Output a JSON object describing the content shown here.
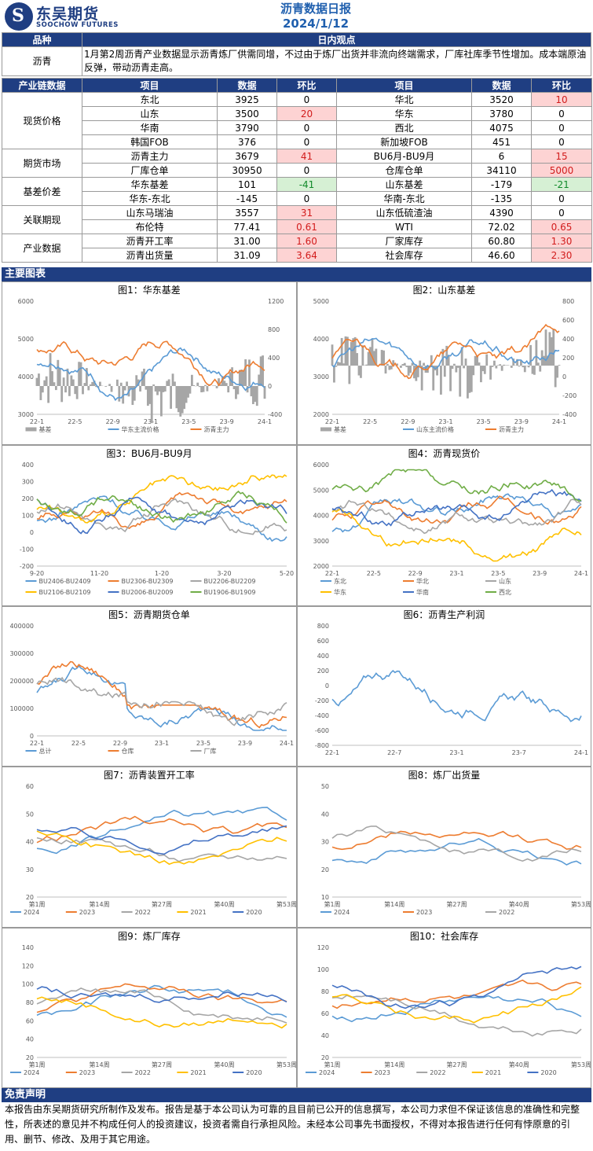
{
  "header": {
    "logo_cn": "东吴期货",
    "logo_en": "SOOCHOW FUTURES",
    "title": "沥青数据日报",
    "date": "2024/1/12"
  },
  "summary_table": {
    "col1": "品种",
    "col2": "日内观点",
    "product": "沥青",
    "view": "1月第2周沥青产业数据显示沥青炼厂供需同增，不过由于炼厂出货并非流向终端需求，厂库社库季节性增加。成本端原油反弹，带动沥青走高。"
  },
  "data_table": {
    "headers": [
      "产业链数据",
      "项目",
      "数据",
      "环比",
      "项目",
      "数据",
      "环比"
    ],
    "groups": [
      {
        "name": "现货价格",
        "rows": [
          [
            "东北",
            "3925",
            "0",
            "华北",
            "3520",
            "10"
          ],
          [
            "山东",
            "3500",
            "20",
            "华东",
            "3780",
            "0"
          ],
          [
            "华南",
            "3790",
            "0",
            "西北",
            "4075",
            "0"
          ],
          [
            "韩国FOB",
            "376",
            "0",
            "新加坡FOB",
            "451",
            "0"
          ]
        ]
      },
      {
        "name": "期货市场",
        "rows": [
          [
            "沥青主力",
            "3679",
            "41",
            "BU6月-BU9月",
            "6",
            "15"
          ],
          [
            "厂库仓单",
            "30950",
            "0",
            "仓库仓单",
            "34110",
            "5000"
          ]
        ]
      },
      {
        "name": "基差价差",
        "rows": [
          [
            "华东基差",
            "101",
            "-41",
            "山东基差",
            "-179",
            "-21"
          ],
          [
            "华东-东北",
            "-145",
            "0",
            "华南-东北",
            "-135",
            "0"
          ]
        ]
      },
      {
        "name": "关联期现",
        "rows": [
          [
            "山东马瑞油",
            "3557",
            "31",
            "山东低硫渣油",
            "4390",
            "0"
          ],
          [
            "布伦特",
            "77.41",
            "0.61",
            "WTI",
            "72.02",
            "0.65"
          ]
        ]
      },
      {
        "name": "产业数据",
        "rows": [
          [
            "沥青开工率",
            "31.00",
            "1.60",
            "厂家库存",
            "60.80",
            "1.30"
          ],
          [
            "沥青出货量",
            "31.09",
            "3.64",
            "社会库存",
            "46.60",
            "2.30"
          ]
        ]
      }
    ]
  },
  "sections": {
    "charts": "主要图表",
    "disclaimer": "免责声明"
  },
  "disclaimer_text": "本报告由东吴期货研究所制作及发布。报告是基于本公司认为可靠的且目前已公开的信息撰写，本公司力求但不保证该信息的准确性和完整性，所表述的意见并不构成任何人的投资建议，投资者需自行承担风险。未经本公司事先书面授权，不得对本报告进行任何有悖原意的引用、删节、修改、及用于其它用途。",
  "charts": [
    {
      "title": "图1：华东基差",
      "type": "line",
      "x_ticks": [
        "22-1",
        "22-5",
        "22-9",
        "23-1",
        "23-5",
        "23-9",
        "24-1"
      ],
      "y_ticks": [
        "6000",
        "5000",
        "4000",
        "3000"
      ],
      "y2_ticks": [
        "1200",
        "800",
        "400",
        "0",
        "-400"
      ],
      "legend": [
        "基差",
        "华东主流价格",
        "沥青主力"
      ],
      "colors": [
        "#a6a6a6",
        "#5b9bd5",
        "#ed7d31"
      ]
    },
    {
      "title": "图2：山东基差",
      "type": "line",
      "x_ticks": [
        "22-1",
        "22-5",
        "22-9",
        "23-1",
        "23-5",
        "23-9",
        "24-1"
      ],
      "y_ticks": [
        "5000",
        "4000",
        "3000",
        "2000"
      ],
      "y2_ticks": [
        "800",
        "600",
        "400",
        "200",
        "0",
        "-200",
        "-400"
      ],
      "legend": [
        "基差",
        "山东主流价格",
        "沥青主力"
      ],
      "colors": [
        "#a6a6a6",
        "#5b9bd5",
        "#ed7d31"
      ]
    },
    {
      "title": "图3：BU6月-BU9月",
      "type": "line",
      "x_ticks": [
        "9-20",
        "11-20",
        "1-20",
        "3-20",
        "5-20"
      ],
      "y_ticks": [
        "400",
        "300",
        "200",
        "100",
        "0",
        "-100",
        "-200"
      ],
      "legend": [
        "BU2406-BU2409",
        "BU2306-BU2309",
        "BU2206-BU2209",
        "BU2106-BU2109",
        "BU2006-BU2009",
        "BU1906-BU1909"
      ],
      "colors": [
        "#5b9bd5",
        "#ed7d31",
        "#a6a6a6",
        "#ffc000",
        "#4472c4",
        "#70ad47"
      ]
    },
    {
      "title": "图4：沥青现货价",
      "type": "line",
      "x_ticks": [
        "22-1",
        "22-5",
        "22-9",
        "23-1",
        "23-5",
        "23-9",
        "24-1"
      ],
      "y_ticks": [
        "6000",
        "5000",
        "4000",
        "3000",
        "2000"
      ],
      "legend": [
        "东北",
        "华北",
        "山东",
        "华东",
        "华南",
        "西北"
      ],
      "colors": [
        "#5b9bd5",
        "#ed7d31",
        "#a6a6a6",
        "#ffc000",
        "#4472c4",
        "#70ad47"
      ]
    },
    {
      "title": "图5：沥青期货仓单",
      "type": "line",
      "x_ticks": [
        "22-1",
        "22-5",
        "22-9",
        "23-1",
        "23-5",
        "23-9",
        "24-1"
      ],
      "y_ticks": [
        "400000",
        "300000",
        "200000",
        "100000",
        "0"
      ],
      "legend": [
        "总计",
        "仓库",
        "厂库"
      ],
      "colors": [
        "#5b9bd5",
        "#ed7d31",
        "#a6a6a6"
      ]
    },
    {
      "title": "图6：沥青生产利润",
      "type": "line",
      "x_ticks": [
        "22-1",
        "22-7",
        "23-1",
        "23-7",
        "24-1"
      ],
      "y_ticks": [
        "800",
        "600",
        "400",
        "200",
        "0",
        "-200",
        "-400",
        "-600",
        "-800"
      ],
      "legend": [],
      "colors": [
        "#5b9bd5"
      ]
    },
    {
      "title": "图7：沥青装置开工率",
      "type": "line",
      "x_ticks": [
        "第1周",
        "第14周",
        "第27周",
        "第40周",
        "第53周"
      ],
      "y_ticks": [
        "60",
        "50",
        "40",
        "30",
        "20"
      ],
      "legend": [
        "2024",
        "2023",
        "2022",
        "2021",
        "2020"
      ],
      "colors": [
        "#5b9bd5",
        "#ed7d31",
        "#a6a6a6",
        "#ffc000",
        "#4472c4"
      ]
    },
    {
      "title": "图8：炼厂出货量",
      "type": "line",
      "x_ticks": [
        "第1周",
        "第14周",
        "第27周",
        "第40周",
        "第53周"
      ],
      "y_ticks": [
        "50",
        "40",
        "30",
        "20",
        "10"
      ],
      "legend": [
        "2024",
        "2023",
        "2022"
      ],
      "colors": [
        "#5b9bd5",
        "#ed7d31",
        "#a6a6a6"
      ]
    },
    {
      "title": "图9：炼厂库存",
      "type": "line",
      "x_ticks": [
        "第1周",
        "第14周",
        "第27周",
        "第40周",
        "第53周"
      ],
      "y_ticks": [
        "140",
        "120",
        "100",
        "80",
        "60",
        "40",
        "20"
      ],
      "legend": [
        "2024",
        "2023",
        "2022",
        "2021",
        "2020"
      ],
      "colors": [
        "#5b9bd5",
        "#ed7d31",
        "#a6a6a6",
        "#ffc000",
        "#4472c4"
      ]
    },
    {
      "title": "图10：社会库存",
      "type": "line",
      "x_ticks": [
        "第1周",
        "第14周",
        "第27周",
        "第40周",
        "第53周"
      ],
      "y_ticks": [
        "120",
        "100",
        "80",
        "60",
        "40",
        "20"
      ],
      "legend": [
        "2024",
        "2023",
        "2022",
        "2021",
        "2020"
      ],
      "colors": [
        "#5b9bd5",
        "#ed7d31",
        "#a6a6a6",
        "#ffc000",
        "#4472c4"
      ]
    }
  ]
}
